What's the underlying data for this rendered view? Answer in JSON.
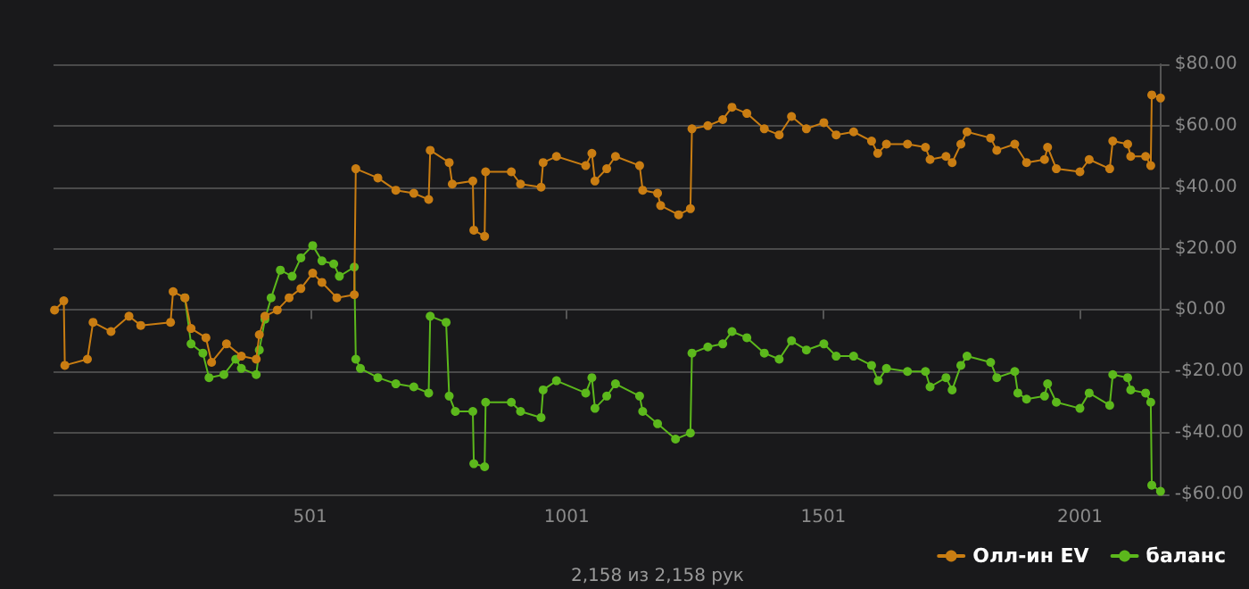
{
  "chart_data": {
    "type": "line",
    "xlim": [
      1,
      2158
    ],
    "xticks": [
      501,
      1001,
      1501,
      2001
    ],
    "ylim": [
      -60,
      80
    ],
    "yticks": [
      {
        "value": -60,
        "label": "-$60.00"
      },
      {
        "value": -40,
        "label": "-$40.00"
      },
      {
        "value": -20,
        "label": "-$20.00"
      },
      {
        "value": 0,
        "label": "$0.00"
      },
      {
        "value": 20,
        "label": "$20.00"
      },
      {
        "value": 40,
        "label": "$40.00"
      },
      {
        "value": 60,
        "label": "$60.00"
      },
      {
        "value": 80,
        "label": "$80.00"
      }
    ],
    "grid": "y",
    "legend": "bottom right",
    "marker": "circle",
    "line_style": "solid",
    "annotations": [
      "2,158 из 2,158 рук"
    ],
    "series": [
      {
        "name": "Олл-ин EV",
        "color": "#c97d12",
        "x": [
          3,
          21,
          23,
          67,
          78,
          113,
          148,
          171,
          229,
          234,
          257,
          269,
          298,
          309,
          338,
          367,
          396,
          402,
          413,
          437,
          460,
          483,
          506,
          524,
          553,
          587,
          590,
          633,
          668,
          703,
          732,
          735,
          772,
          778,
          818,
          820,
          841,
          843,
          893,
          911,
          951,
          955,
          981,
          1038,
          1050,
          1056,
          1079,
          1096,
          1143,
          1149,
          1178,
          1184,
          1219,
          1242,
          1245,
          1276,
          1305,
          1323,
          1352,
          1386,
          1415,
          1439,
          1468,
          1502,
          1526,
          1560,
          1595,
          1607,
          1624,
          1665,
          1700,
          1709,
          1740,
          1752,
          1769,
          1781,
          1827,
          1839,
          1874,
          1897,
          1932,
          1938,
          1955,
          2001,
          2019,
          2059,
          2065,
          2094,
          2100,
          2129,
          2139,
          2141,
          2158
        ],
        "values": [
          0,
          3,
          -18,
          -16,
          -4,
          -7,
          -2,
          -5,
          -4,
          6,
          4,
          -6,
          -9,
          -17,
          -11,
          -15,
          -16,
          -8,
          -2,
          0,
          4,
          7,
          12,
          9,
          4,
          5,
          46,
          43,
          39,
          38,
          36,
          52,
          48,
          41,
          42,
          26,
          24,
          45,
          45,
          41,
          40,
          48,
          50,
          47,
          51,
          42,
          46,
          50,
          47,
          39,
          38,
          34,
          31,
          33,
          59,
          60,
          62,
          66,
          64,
          59,
          57,
          63,
          59,
          61,
          57,
          58,
          55,
          51,
          54,
          54,
          53,
          49,
          50,
          48,
          54,
          58,
          56,
          52,
          54,
          48,
          49,
          53,
          46,
          45,
          49,
          46,
          55,
          54,
          50,
          50,
          47,
          70,
          69
        ]
      },
      {
        "name": "баланс",
        "color": "#5cb81c",
        "x": [
          257,
          269,
          292,
          304,
          333,
          356,
          367,
          396,
          402,
          413,
          425,
          443,
          466,
          483,
          506,
          524,
          547,
          558,
          587,
          590,
          599,
          633,
          668,
          703,
          732,
          735,
          766,
          772,
          784,
          818,
          820,
          841,
          843,
          893,
          911,
          951,
          955,
          981,
          1038,
          1050,
          1056,
          1079,
          1096,
          1143,
          1149,
          1178,
          1213,
          1242,
          1245,
          1276,
          1305,
          1323,
          1352,
          1386,
          1415,
          1439,
          1468,
          1502,
          1526,
          1560,
          1595,
          1608,
          1624,
          1665,
          1700,
          1709,
          1740,
          1752,
          1769,
          1781,
          1827,
          1839,
          1874,
          1880,
          1897,
          1932,
          1938,
          1955,
          2001,
          2019,
          2059,
          2065,
          2094,
          2100,
          2129,
          2139,
          2141,
          2158
        ],
        "values": [
          4,
          -11,
          -14,
          -22,
          -21,
          -16,
          -19,
          -21,
          -13,
          -3,
          4,
          13,
          11,
          17,
          21,
          16,
          15,
          11,
          14,
          -16,
          -19,
          -22,
          -24,
          -25,
          -27,
          -2,
          -4,
          -28,
          -33,
          -33,
          -50,
          -51,
          -30,
          -30,
          -33,
          -35,
          -26,
          -23,
          -27,
          -22,
          -32,
          -28,
          -24,
          -28,
          -33,
          -37,
          -42,
          -40,
          -14,
          -12,
          -11,
          -7,
          -9,
          -14,
          -16,
          -10,
          -13,
          -11,
          -15,
          -15,
          -18,
          -23,
          -19,
          -20,
          -20,
          -25,
          -22,
          -26,
          -18,
          -15,
          -17,
          -22,
          -20,
          -27,
          -29,
          -28,
          -24,
          -30,
          -32,
          -27,
          -31,
          -21,
          -22,
          -26,
          -27,
          -30,
          -57,
          -59
        ]
      }
    ]
  }
}
